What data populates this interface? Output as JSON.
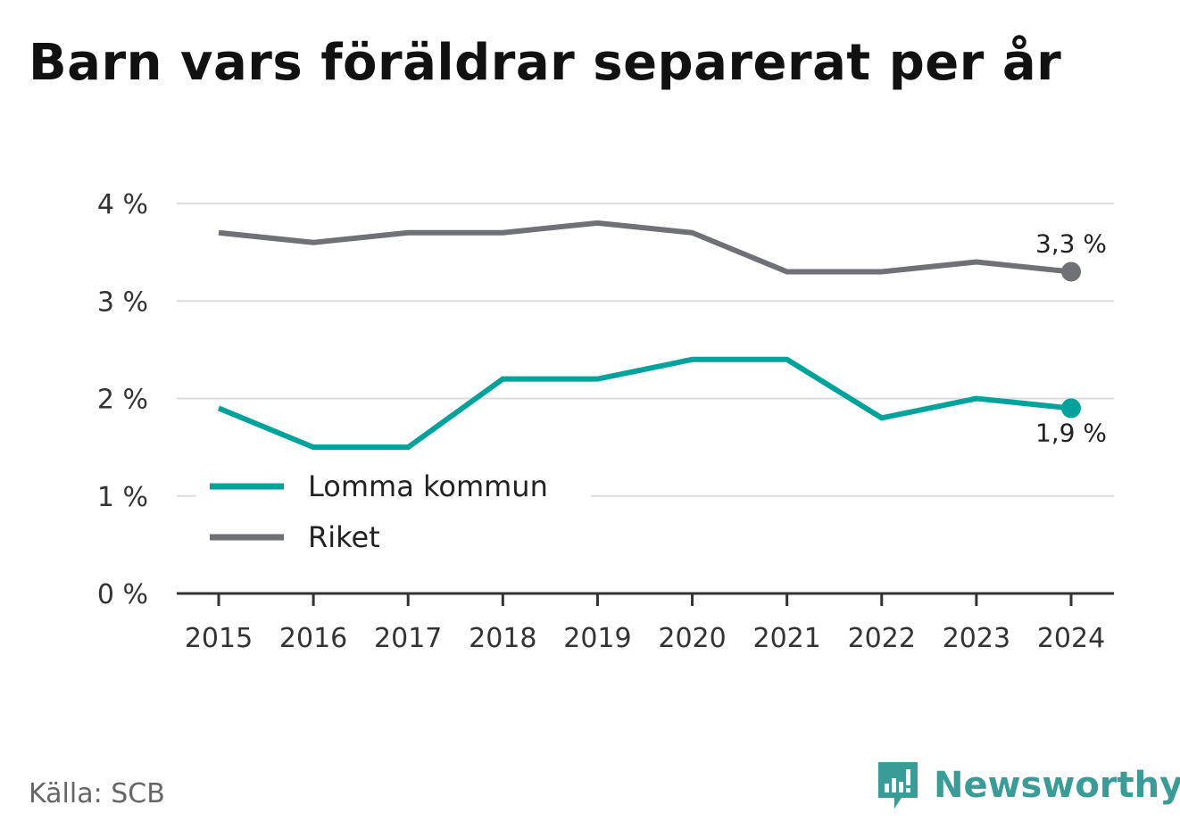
{
  "title": "Barn vars föräldrar separerat per år",
  "source": "Källa: SCB",
  "brand": "Newsworthy",
  "chart_data": {
    "type": "line",
    "x": [
      "2015",
      "2016",
      "2017",
      "2018",
      "2019",
      "2020",
      "2021",
      "2022",
      "2023",
      "2024"
    ],
    "series": [
      {
        "name": "Lomma kommun",
        "color": "#00a39b",
        "values": [
          1.9,
          1.5,
          1.5,
          2.2,
          2.2,
          2.4,
          2.4,
          1.8,
          2.0,
          1.9
        ],
        "end_label": "1,9 %"
      },
      {
        "name": "Riket",
        "color": "#707077",
        "values": [
          3.7,
          3.6,
          3.7,
          3.7,
          3.8,
          3.7,
          3.3,
          3.3,
          3.4,
          3.3
        ],
        "end_label": "3,3 %"
      }
    ],
    "yticks": [
      "0 %",
      "1 %",
      "2 %",
      "3 %",
      "4 %"
    ],
    "ylim": [
      0,
      4
    ],
    "grid": true,
    "legend": "bottom-left"
  }
}
